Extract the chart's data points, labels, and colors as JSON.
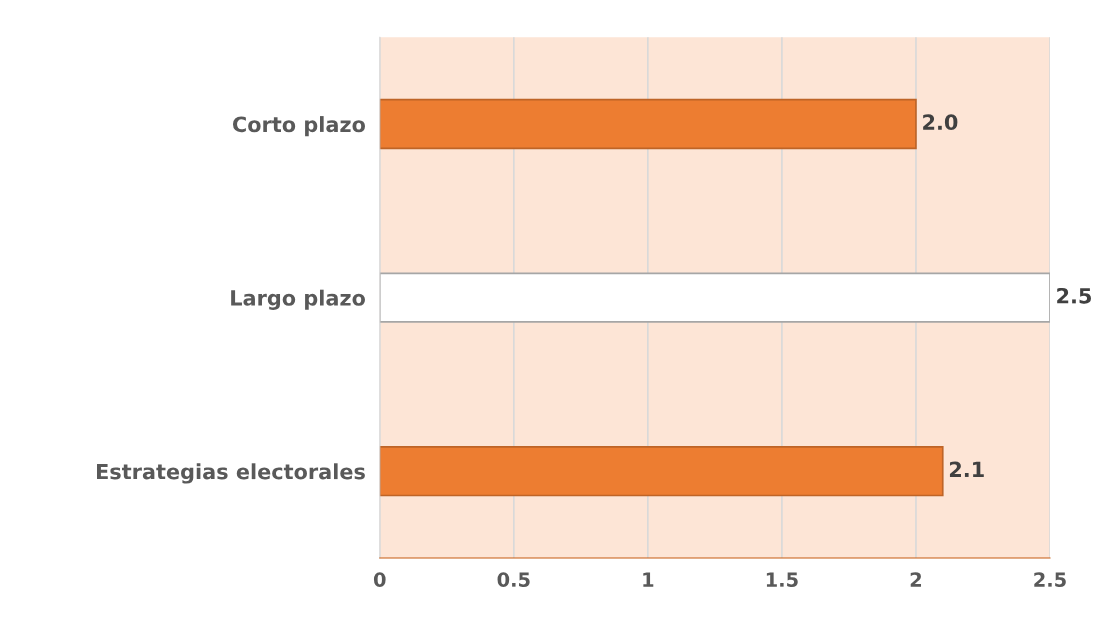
{
  "chart_data": {
    "type": "bar",
    "orientation": "horizontal",
    "categories": [
      "Corto plazo",
      "Largo plazo",
      "Estrategias electorales"
    ],
    "values": [
      2.0,
      2.5,
      2.1
    ],
    "colors": [
      "#ed7d31",
      "#ffffff",
      "#ed7d31"
    ],
    "xlim": [
      0,
      2.5
    ],
    "xticks": [
      0,
      0.5,
      1,
      1.5,
      2,
      2.5
    ],
    "value_labels": [
      "2.0",
      "2.5",
      "2.1"
    ],
    "grid": "x"
  }
}
